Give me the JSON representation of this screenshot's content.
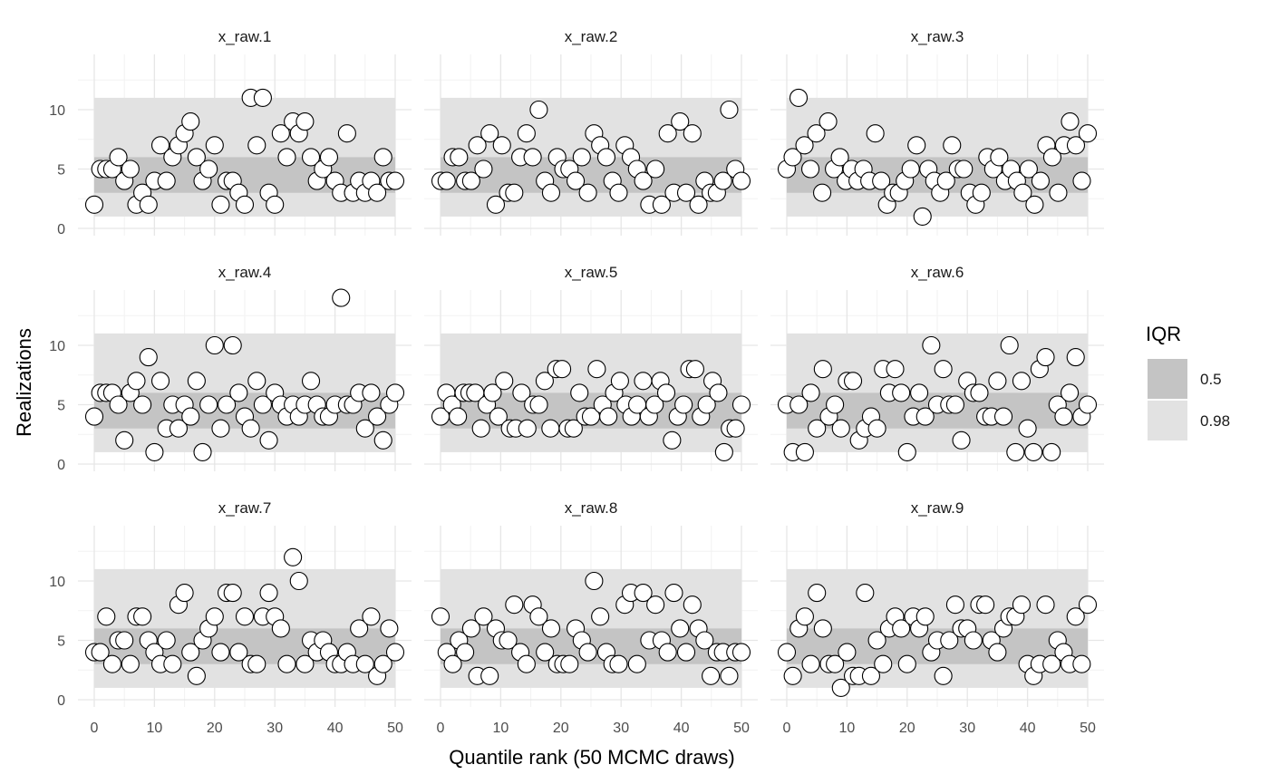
{
  "chart_data": {
    "type": "scatter",
    "layout": "facet-grid 3x3",
    "xlabel": "Quantile rank (50 MCMC draws)",
    "ylabel": "Realizations",
    "xlim": [
      0,
      50
    ],
    "ylim": [
      0,
      14
    ],
    "x_ticks": [
      0,
      10,
      20,
      30,
      40,
      50
    ],
    "y_ticks": [
      0,
      5,
      10
    ],
    "grid": true,
    "legend": {
      "title": "IQR",
      "position": "right",
      "items": [
        {
          "label": "0.5",
          "color": "#c4c4c4"
        },
        {
          "label": "0.98",
          "color": "#e2e2e2"
        }
      ]
    },
    "bands": [
      {
        "level": "0.98",
        "ymin": 1,
        "ymax": 11,
        "color": "#e2e2e2"
      },
      {
        "level": "0.5",
        "ymin": 3,
        "ymax": 6,
        "color": "#c4c4c4"
      }
    ],
    "point_style": {
      "fill": "#ffffff",
      "stroke": "#000000"
    },
    "panels": [
      {
        "name": "x_raw.1",
        "y": [
          2,
          5,
          5,
          5,
          6,
          4,
          5,
          2,
          3,
          2,
          4,
          7,
          4,
          6,
          7,
          8,
          9,
          6,
          4,
          5,
          7,
          2,
          4,
          4,
          3,
          2,
          11,
          7,
          11,
          3,
          2,
          8,
          6,
          9,
          8,
          9,
          6,
          4,
          5,
          6,
          4,
          3,
          8,
          3,
          4,
          3,
          4,
          3,
          6,
          4,
          4
        ]
      },
      {
        "name": "x_raw.2",
        "y": [
          4,
          4,
          6,
          6,
          4,
          4,
          7,
          5,
          8,
          2,
          7,
          3,
          3,
          6,
          8,
          6,
          10,
          4,
          3,
          6,
          5,
          5,
          4,
          6,
          3,
          8,
          7,
          6,
          4,
          3,
          7,
          6,
          5,
          4,
          2,
          5,
          2,
          8,
          3,
          9,
          3,
          8,
          2,
          4,
          3,
          3,
          4,
          10,
          5,
          4
        ]
      },
      {
        "name": "x_raw.3",
        "y": [
          5,
          6,
          11,
          7,
          5,
          8,
          3,
          9,
          5,
          6,
          4,
          5,
          4,
          5,
          4,
          8,
          4,
          2,
          3,
          3,
          4,
          5,
          7,
          1,
          5,
          4,
          3,
          4,
          7,
          5,
          5,
          3,
          2,
          3,
          6,
          5,
          6,
          4,
          5,
          4,
          3,
          5,
          2,
          4,
          7,
          6,
          3,
          7,
          9,
          7,
          4,
          8
        ]
      },
      {
        "name": "x_raw.4",
        "y": [
          4,
          6,
          6,
          6,
          5,
          2,
          6,
          7,
          5,
          9,
          1,
          7,
          3,
          5,
          3,
          5,
          4,
          7,
          1,
          5,
          10,
          3,
          5,
          10,
          6,
          4,
          3,
          7,
          5,
          2,
          6,
          5,
          4,
          5,
          4,
          5,
          7,
          5,
          4,
          4,
          5,
          14,
          5,
          5,
          6,
          3,
          6,
          4,
          2,
          5,
          6
        ]
      },
      {
        "name": "x_raw.5",
        "y": [
          4,
          6,
          5,
          4,
          6,
          6,
          6,
          3,
          5,
          6,
          4,
          7,
          3,
          3,
          6,
          3,
          5,
          5,
          7,
          3,
          8,
          8,
          3,
          3,
          6,
          4,
          4,
          8,
          5,
          4,
          6,
          7,
          5,
          4,
          5,
          7,
          4,
          5,
          7,
          6,
          2,
          4,
          5,
          8,
          8,
          4,
          5,
          7,
          6,
          1,
          3,
          3,
          5
        ]
      },
      {
        "name": "x_raw.6",
        "y": [
          5,
          1,
          5,
          1,
          6,
          3,
          8,
          4,
          5,
          3,
          7,
          7,
          2,
          3,
          4,
          3,
          8,
          6,
          8,
          6,
          1,
          4,
          6,
          4,
          10,
          5,
          8,
          5,
          5,
          2,
          7,
          6,
          6,
          4,
          4,
          7,
          4,
          10,
          1,
          7,
          3,
          1,
          8,
          9,
          1,
          5,
          4,
          6,
          9,
          4,
          5
        ]
      },
      {
        "name": "x_raw.7",
        "y": [
          4,
          4,
          7,
          3,
          5,
          5,
          3,
          7,
          7,
          5,
          4,
          3,
          5,
          3,
          8,
          9,
          4,
          2,
          5,
          6,
          7,
          4,
          9,
          9,
          4,
          7,
          3,
          3,
          7,
          9,
          7,
          6,
          3,
          12,
          10,
          3,
          5,
          4,
          5,
          4,
          3,
          3,
          4,
          3,
          6,
          3,
          7,
          2,
          3,
          6,
          4
        ]
      },
      {
        "name": "x_raw.8",
        "y": [
          7,
          4,
          3,
          5,
          4,
          6,
          2,
          7,
          2,
          6,
          5,
          5,
          8,
          4,
          3,
          8,
          7,
          4,
          6,
          3,
          3,
          3,
          6,
          5,
          4,
          10,
          7,
          4,
          3,
          3,
          8,
          9,
          3,
          9,
          5,
          8,
          5,
          4,
          9,
          6,
          4,
          8,
          6,
          5,
          2,
          4,
          4,
          2,
          4,
          4
        ]
      },
      {
        "name": "x_raw.9",
        "y": [
          4,
          2,
          6,
          7,
          3,
          9,
          6,
          3,
          3,
          1,
          4,
          2,
          2,
          9,
          2,
          5,
          3,
          6,
          7,
          6,
          3,
          7,
          6,
          7,
          4,
          5,
          2,
          5,
          8,
          6,
          6,
          5,
          8,
          8,
          5,
          4,
          6,
          7,
          7,
          8,
          3,
          2,
          3,
          8,
          3,
          5,
          4,
          3,
          7,
          3,
          8
        ]
      }
    ]
  }
}
